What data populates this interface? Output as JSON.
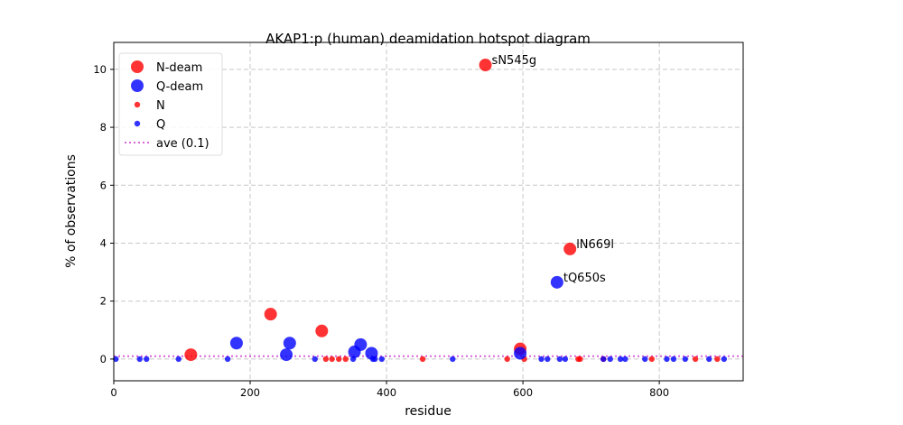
{
  "chart_data": {
    "type": "scatter",
    "title": "AKAP1:p (human) deamidation hotspot diagram",
    "xlabel": "residue",
    "ylabel": "% of observations",
    "xlim": [
      0,
      923
    ],
    "ylim": [
      -0.75,
      10.93
    ],
    "xticks": [
      0,
      200,
      400,
      600,
      800
    ],
    "yticks": [
      0,
      2,
      4,
      6,
      8,
      10
    ],
    "grid": true,
    "legend_position": "top-left",
    "colors": {
      "N": "#ff0000",
      "Q": "#0000ff",
      "ave": "#bf00bf"
    },
    "average": {
      "label": "ave (0.1)",
      "value": 0.1
    },
    "series": [
      {
        "name": "N-deam",
        "size": "large",
        "color": "#ff0000",
        "points": [
          [
            113,
            0.15
          ],
          [
            230,
            1.55
          ],
          [
            305,
            0.97
          ],
          [
            545,
            10.15
          ],
          [
            596,
            0.35
          ],
          [
            669,
            3.8
          ]
        ]
      },
      {
        "name": "Q-deam",
        "size": "large",
        "color": "#0000ff",
        "points": [
          [
            180,
            0.55
          ],
          [
            253,
            0.15
          ],
          [
            258,
            0.55
          ],
          [
            353,
            0.25
          ],
          [
            362,
            0.5
          ],
          [
            378,
            0.2
          ],
          [
            596,
            0.2
          ],
          [
            650,
            2.65
          ]
        ]
      },
      {
        "name": "N",
        "size": "small",
        "color": "#ff0000",
        "points": [
          [
            311,
            0
          ],
          [
            320,
            0
          ],
          [
            330,
            0
          ],
          [
            340,
            0
          ],
          [
            453,
            0
          ],
          [
            577,
            0
          ],
          [
            602,
            0
          ],
          [
            681,
            0
          ],
          [
            684,
            0
          ],
          [
            718,
            0
          ],
          [
            789,
            0
          ],
          [
            853,
            0
          ],
          [
            885,
            0
          ]
        ]
      },
      {
        "name": "Q",
        "size": "small",
        "color": "#0000ff",
        "points": [
          [
            3,
            0
          ],
          [
            38,
            0
          ],
          [
            48,
            0
          ],
          [
            95,
            0
          ],
          [
            167,
            0
          ],
          [
            295,
            0
          ],
          [
            351,
            0
          ],
          [
            380,
            0
          ],
          [
            383,
            0
          ],
          [
            393,
            0
          ],
          [
            497,
            0
          ],
          [
            627,
            0
          ],
          [
            636,
            0
          ],
          [
            654,
            0
          ],
          [
            662,
            0
          ],
          [
            718,
            0
          ],
          [
            728,
            0
          ],
          [
            743,
            0
          ],
          [
            750,
            0
          ],
          [
            779,
            0
          ],
          [
            811,
            0
          ],
          [
            821,
            0
          ],
          [
            838,
            0
          ],
          [
            873,
            0
          ],
          [
            895,
            0
          ]
        ]
      }
    ],
    "annotations": [
      {
        "text": "sN545g",
        "x": 545,
        "y": 10.15
      },
      {
        "text": "lN669l",
        "x": 669,
        "y": 3.8
      },
      {
        "text": "tQ650s",
        "x": 650,
        "y": 2.65
      }
    ]
  }
}
